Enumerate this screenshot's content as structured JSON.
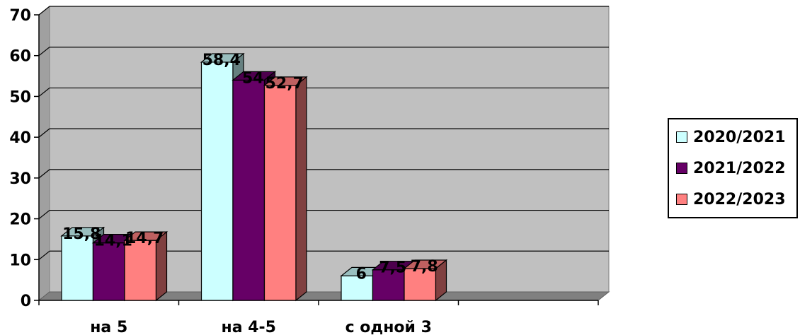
{
  "chart_data": {
    "type": "bar",
    "categories": [
      "на 5",
      "на 4-5",
      "с одной 3",
      ""
    ],
    "series": [
      {
        "name": "2020/2021",
        "values": [
          15.8,
          58.4,
          6,
          null
        ],
        "labels": [
          "15,8",
          "58,4",
          "6",
          ""
        ],
        "color": "#ccffff"
      },
      {
        "name": "2021/2022",
        "values": [
          14.1,
          54,
          7.5,
          null
        ],
        "labels": [
          "14,1",
          "54",
          "7,5",
          ""
        ],
        "color": "#660066"
      },
      {
        "name": "2022/2023",
        "values": [
          14.7,
          52.7,
          7.8,
          null
        ],
        "labels": [
          "14,7",
          "52,7",
          "7,8",
          ""
        ],
        "color": "#ff8080"
      }
    ],
    "y_ticks": [
      "0",
      "10",
      "20",
      "30",
      "40",
      "50",
      "60",
      "70"
    ],
    "ylim": [
      0,
      70
    ],
    "grid": true,
    "legend_position": "right",
    "style": "3d-clustered-column",
    "wall_color": "#c0c0c0"
  }
}
